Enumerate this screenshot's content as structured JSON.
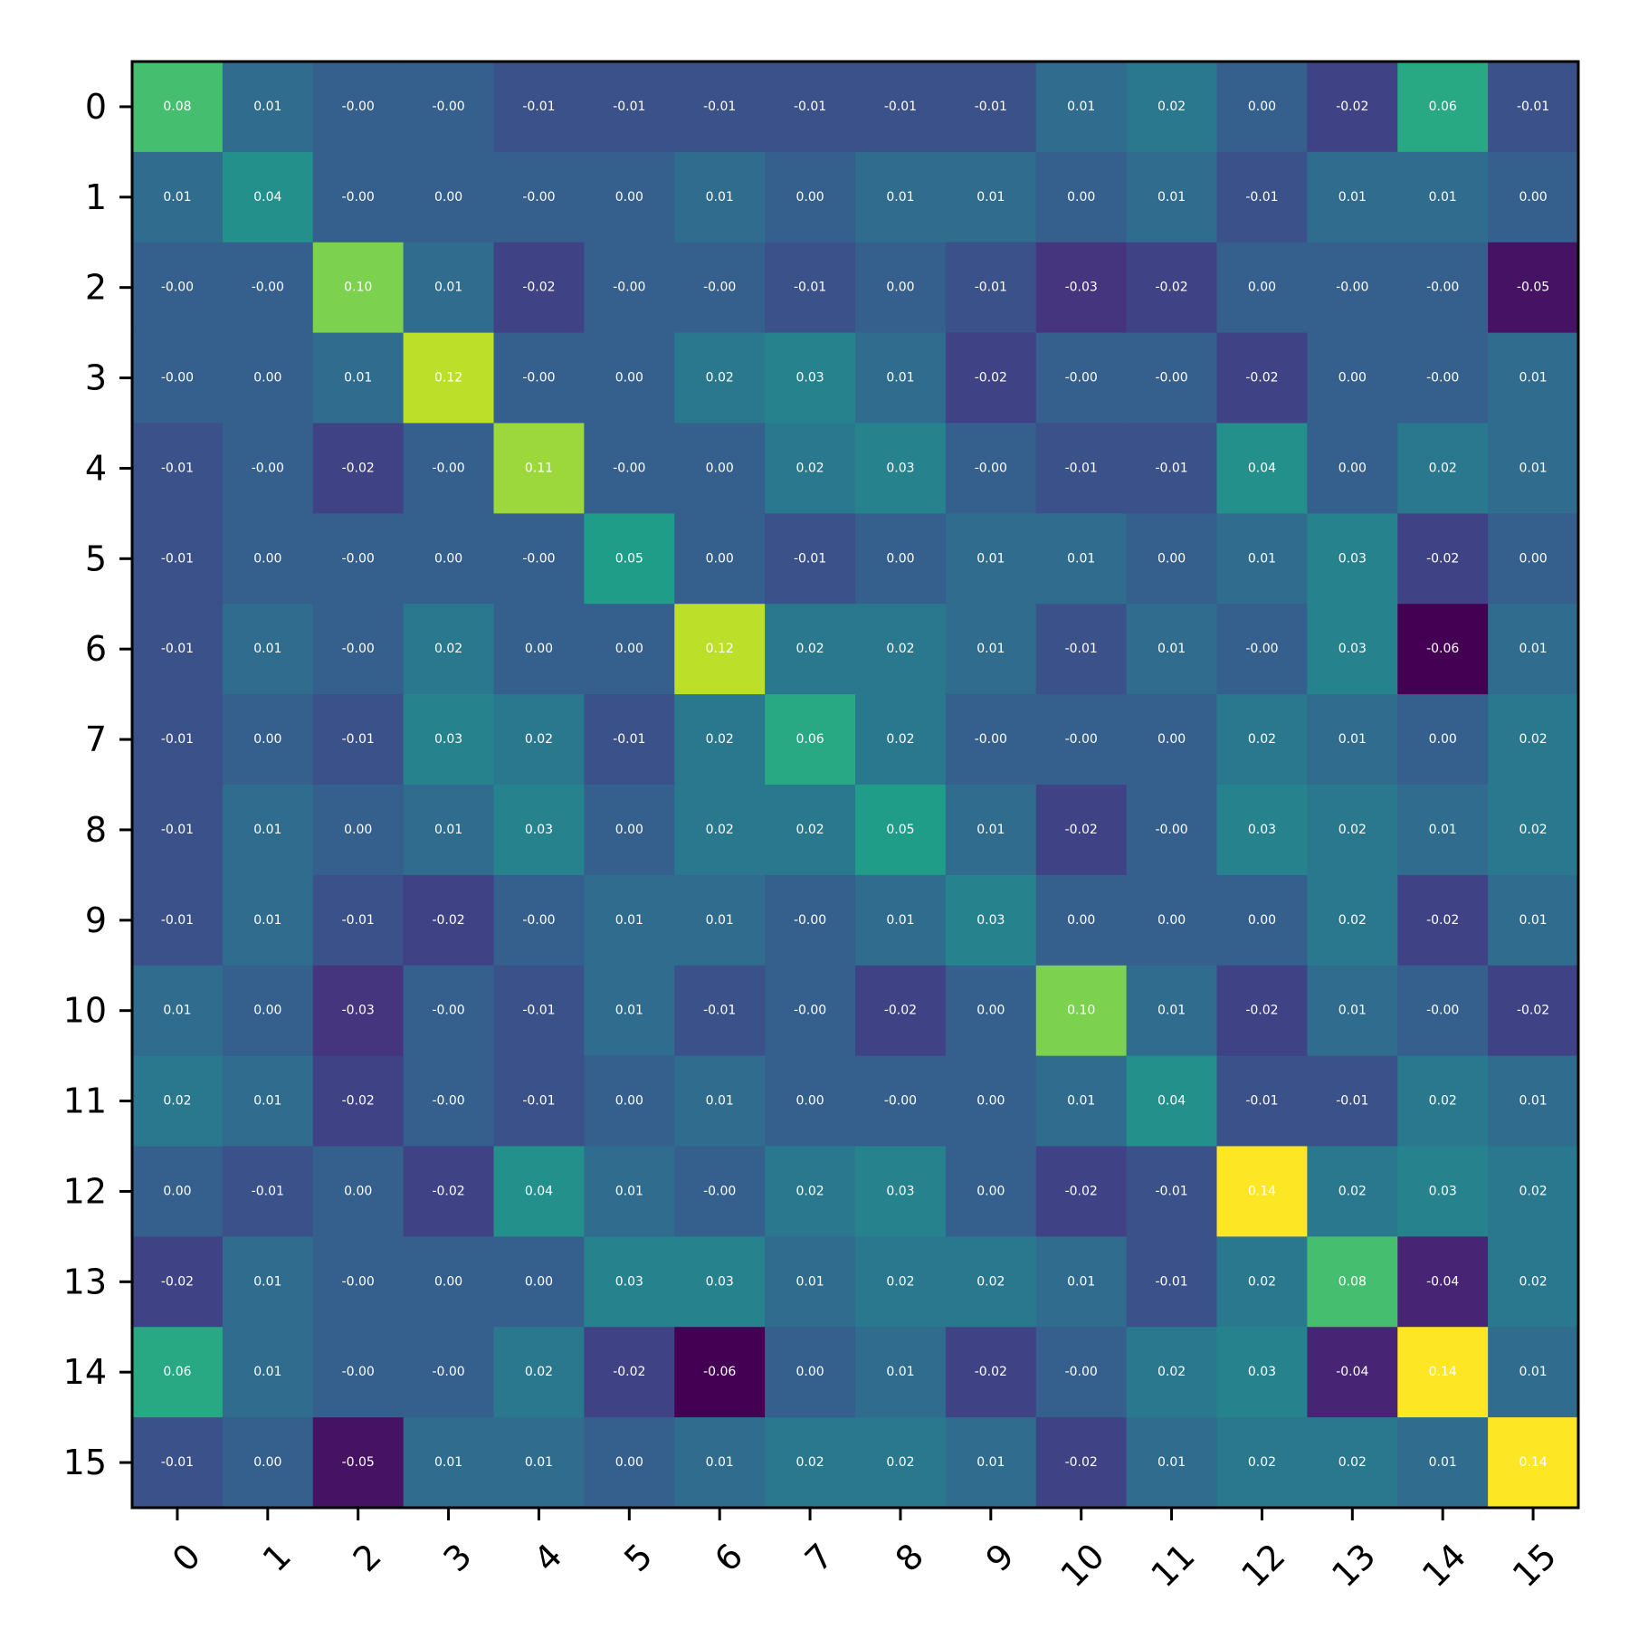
{
  "chart_data": {
    "type": "heatmap",
    "title": "",
    "xlabel": "",
    "ylabel": "",
    "x_categories": [
      "0",
      "1",
      "2",
      "3",
      "4",
      "5",
      "6",
      "7",
      "8",
      "9",
      "10",
      "11",
      "12",
      "13",
      "14",
      "15"
    ],
    "y_categories": [
      "0",
      "1",
      "2",
      "3",
      "4",
      "5",
      "6",
      "7",
      "8",
      "9",
      "10",
      "11",
      "12",
      "13",
      "14",
      "15"
    ],
    "colormap": "viridis",
    "color_range": [
      -0.06,
      0.14
    ],
    "cell_label_format": "2 decimals",
    "grid": false,
    "colorbar": false,
    "values": [
      [
        0.08,
        0.01,
        -0.0,
        -0.0,
        -0.01,
        -0.01,
        -0.01,
        -0.01,
        -0.01,
        -0.01,
        0.01,
        0.02,
        0.0,
        -0.02,
        0.06,
        -0.01
      ],
      [
        0.01,
        0.04,
        -0.0,
        0.0,
        -0.0,
        0.0,
        0.01,
        0.0,
        0.01,
        0.01,
        0.0,
        0.01,
        -0.01,
        0.01,
        0.01,
        0.0
      ],
      [
        -0.0,
        -0.0,
        0.1,
        0.01,
        -0.02,
        -0.0,
        -0.0,
        -0.01,
        0.0,
        -0.01,
        -0.03,
        -0.02,
        0.0,
        -0.0,
        -0.0,
        -0.05
      ],
      [
        -0.0,
        0.0,
        0.01,
        0.12,
        -0.0,
        0.0,
        0.02,
        0.03,
        0.01,
        -0.02,
        -0.0,
        -0.0,
        -0.02,
        0.0,
        -0.0,
        0.01
      ],
      [
        -0.01,
        -0.0,
        -0.02,
        -0.0,
        0.11,
        -0.0,
        0.0,
        0.02,
        0.03,
        -0.0,
        -0.01,
        -0.01,
        0.04,
        0.0,
        0.02,
        0.01
      ],
      [
        -0.01,
        0.0,
        -0.0,
        0.0,
        -0.0,
        0.05,
        0.0,
        -0.01,
        0.0,
        0.01,
        0.01,
        0.0,
        0.01,
        0.03,
        -0.02,
        0.0
      ],
      [
        -0.01,
        0.01,
        -0.0,
        0.02,
        0.0,
        0.0,
        0.12,
        0.02,
        0.02,
        0.01,
        -0.01,
        0.01,
        -0.0,
        0.03,
        -0.06,
        0.01
      ],
      [
        -0.01,
        0.0,
        -0.01,
        0.03,
        0.02,
        -0.01,
        0.02,
        0.06,
        0.02,
        -0.0,
        -0.0,
        0.0,
        0.02,
        0.01,
        0.0,
        0.02
      ],
      [
        -0.01,
        0.01,
        0.0,
        0.01,
        0.03,
        0.0,
        0.02,
        0.02,
        0.05,
        0.01,
        -0.02,
        -0.0,
        0.03,
        0.02,
        0.01,
        0.02
      ],
      [
        -0.01,
        0.01,
        -0.01,
        -0.02,
        -0.0,
        0.01,
        0.01,
        -0.0,
        0.01,
        0.03,
        0.0,
        0.0,
        0.0,
        0.02,
        -0.02,
        0.01
      ],
      [
        0.01,
        0.0,
        -0.03,
        -0.0,
        -0.01,
        0.01,
        -0.01,
        -0.0,
        -0.02,
        0.0,
        0.1,
        0.01,
        -0.02,
        0.01,
        -0.0,
        -0.02
      ],
      [
        0.02,
        0.01,
        -0.02,
        -0.0,
        -0.01,
        0.0,
        0.01,
        0.0,
        -0.0,
        0.0,
        0.01,
        0.04,
        -0.01,
        -0.01,
        0.02,
        0.01
      ],
      [
        0.0,
        -0.01,
        0.0,
        -0.02,
        0.04,
        0.01,
        -0.0,
        0.02,
        0.03,
        0.0,
        -0.02,
        -0.01,
        0.14,
        0.02,
        0.03,
        0.02
      ],
      [
        -0.02,
        0.01,
        -0.0,
        0.0,
        0.0,
        0.03,
        0.03,
        0.01,
        0.02,
        0.02,
        0.01,
        -0.01,
        0.02,
        0.08,
        -0.04,
        0.02
      ],
      [
        0.06,
        0.01,
        -0.0,
        -0.0,
        0.02,
        -0.02,
        -0.06,
        0.0,
        0.01,
        -0.02,
        -0.0,
        0.02,
        0.03,
        -0.04,
        0.14,
        0.01
      ],
      [
        -0.01,
        0.0,
        -0.05,
        0.01,
        0.01,
        0.0,
        0.01,
        0.02,
        0.02,
        0.01,
        -0.02,
        0.01,
        0.02,
        0.02,
        0.01,
        0.14
      ]
    ],
    "cell_labels": [
      [
        "0.08",
        "0.01",
        "-0.00",
        "-0.00",
        "-0.01",
        "-0.01",
        "-0.01",
        "-0.01",
        "-0.01",
        "-0.01",
        "0.01",
        "0.02",
        "0.00",
        "-0.02",
        "0.06",
        "-0.01"
      ],
      [
        "0.01",
        "0.04",
        "-0.00",
        "0.00",
        "-0.00",
        "0.00",
        "0.01",
        "0.00",
        "0.01",
        "0.01",
        "0.00",
        "0.01",
        "-0.01",
        "0.01",
        "0.01",
        "0.00"
      ],
      [
        "-0.00",
        "-0.00",
        "0.10",
        "0.01",
        "-0.02",
        "-0.00",
        "-0.00",
        "-0.01",
        "0.00",
        "-0.01",
        "-0.03",
        "-0.02",
        "0.00",
        "-0.00",
        "-0.00",
        "-0.05"
      ],
      [
        "-0.00",
        "0.00",
        "0.01",
        "0.12",
        "-0.00",
        "0.00",
        "0.02",
        "0.03",
        "0.01",
        "-0.02",
        "-0.00",
        "-0.00",
        "-0.02",
        "0.00",
        "-0.00",
        "0.01"
      ],
      [
        "-0.01",
        "-0.00",
        "-0.02",
        "-0.00",
        "0.11",
        "-0.00",
        "0.00",
        "0.02",
        "0.03",
        "-0.00",
        "-0.01",
        "-0.01",
        "0.04",
        "0.00",
        "0.02",
        "0.01"
      ],
      [
        "-0.01",
        "0.00",
        "-0.00",
        "0.00",
        "-0.00",
        "0.05",
        "0.00",
        "-0.01",
        "0.00",
        "0.01",
        "0.01",
        "0.00",
        "0.01",
        "0.03",
        "-0.02",
        "0.00"
      ],
      [
        "-0.01",
        "0.01",
        "-0.00",
        "0.02",
        "0.00",
        "0.00",
        "0.12",
        "0.02",
        "0.02",
        "0.01",
        "-0.01",
        "0.01",
        "-0.00",
        "0.03",
        "-0.06",
        "0.01"
      ],
      [
        "-0.01",
        "0.00",
        "-0.01",
        "0.03",
        "0.02",
        "-0.01",
        "0.02",
        "0.06",
        "0.02",
        "-0.00",
        "-0.00",
        "0.00",
        "0.02",
        "0.01",
        "0.00",
        "0.02"
      ],
      [
        "-0.01",
        "0.01",
        "0.00",
        "0.01",
        "0.03",
        "0.00",
        "0.02",
        "0.02",
        "0.05",
        "0.01",
        "-0.02",
        "-0.00",
        "0.03",
        "0.02",
        "0.01",
        "0.02"
      ],
      [
        "-0.01",
        "0.01",
        "-0.01",
        "-0.02",
        "-0.00",
        "0.01",
        "0.01",
        "-0.00",
        "0.01",
        "0.03",
        "0.00",
        "0.00",
        "0.00",
        "0.02",
        "-0.02",
        "0.01"
      ],
      [
        "0.01",
        "0.00",
        "-0.03",
        "-0.00",
        "-0.01",
        "0.01",
        "-0.01",
        "-0.00",
        "-0.02",
        "0.00",
        "0.10",
        "0.01",
        "-0.02",
        "0.01",
        "-0.00",
        "-0.02"
      ],
      [
        "0.02",
        "0.01",
        "-0.02",
        "-0.00",
        "-0.01",
        "0.00",
        "0.01",
        "0.00",
        "-0.00",
        "0.00",
        "0.01",
        "0.04",
        "-0.01",
        "-0.01",
        "0.02",
        "0.01"
      ],
      [
        "0.00",
        "-0.01",
        "0.00",
        "-0.02",
        "0.04",
        "0.01",
        "-0.00",
        "0.02",
        "0.03",
        "0.00",
        "-0.02",
        "-0.01",
        "0.14",
        "0.02",
        "0.03",
        "0.02"
      ],
      [
        "-0.02",
        "0.01",
        "-0.00",
        "0.00",
        "0.00",
        "0.03",
        "0.03",
        "0.01",
        "0.02",
        "0.02",
        "0.01",
        "-0.01",
        "0.02",
        "0.08",
        "-0.04",
        "0.02"
      ],
      [
        "0.06",
        "0.01",
        "-0.00",
        "-0.00",
        "0.02",
        "-0.02",
        "-0.06",
        "0.00",
        "0.01",
        "-0.02",
        "-0.00",
        "0.02",
        "0.03",
        "-0.04",
        "0.14",
        "0.01"
      ],
      [
        "-0.01",
        "0.00",
        "-0.05",
        "0.01",
        "0.01",
        "0.00",
        "0.01",
        "0.02",
        "0.02",
        "0.01",
        "-0.02",
        "0.01",
        "0.02",
        "0.02",
        "0.01",
        "0.14"
      ]
    ]
  },
  "colors": {
    "cell_label": "#ffffff",
    "axis": "#000000",
    "background": "#ffffff",
    "viridis_stops": [
      "#440154",
      "#482878",
      "#3e4989",
      "#31688e",
      "#26828e",
      "#1f9e89",
      "#35b779",
      "#6ece58",
      "#b5de2b",
      "#fde725"
    ]
  }
}
